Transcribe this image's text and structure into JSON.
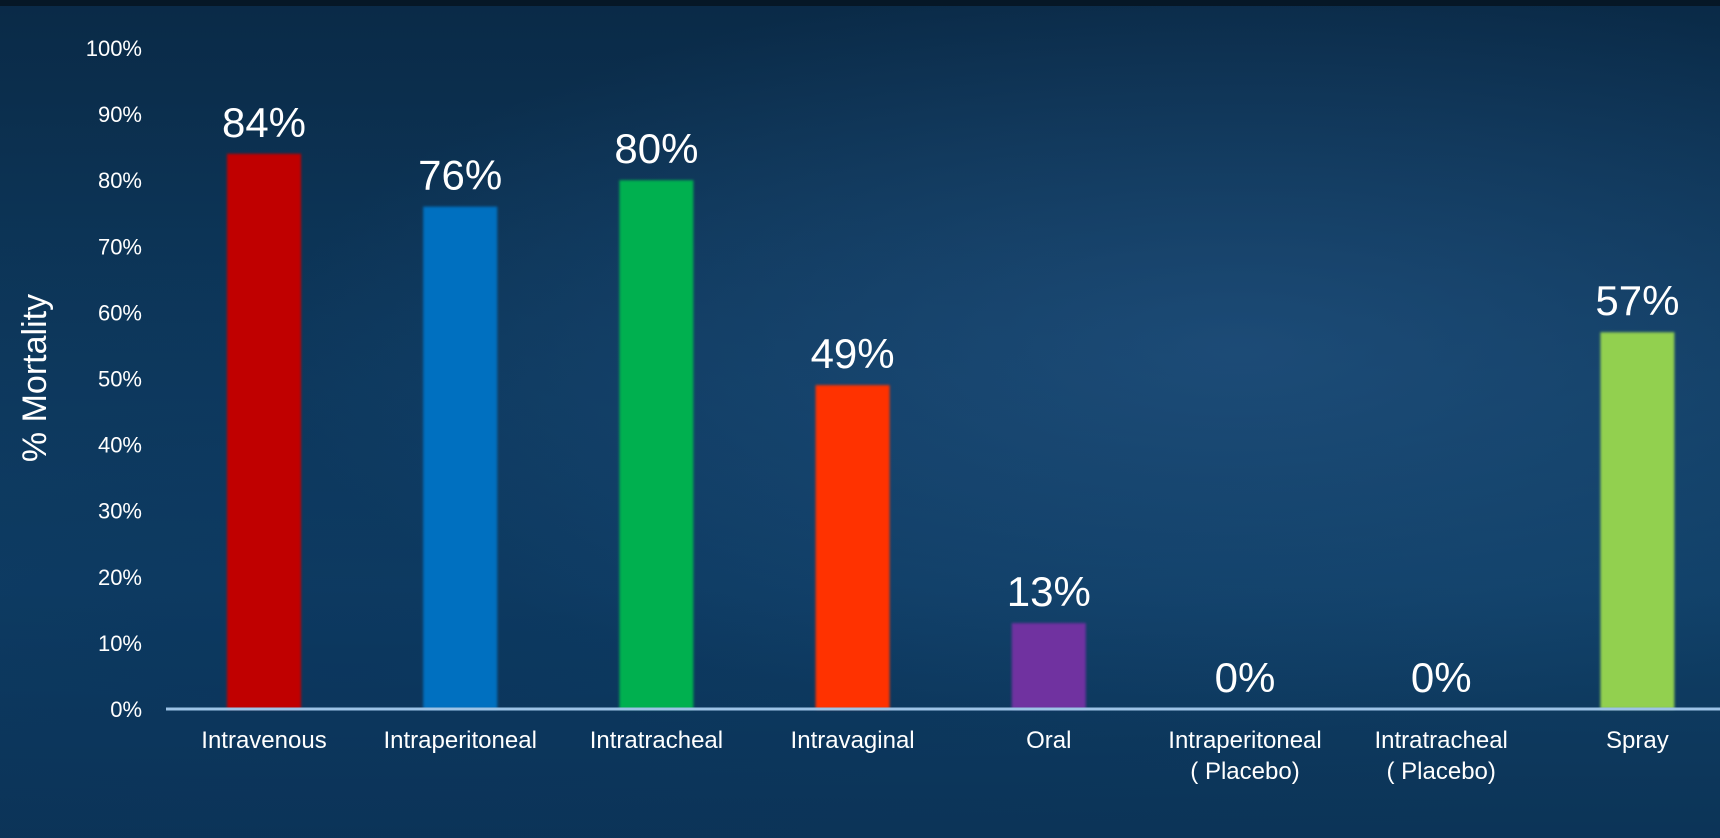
{
  "chart_data": {
    "type": "bar",
    "title": "",
    "xlabel": "",
    "ylabel": "% Mortality",
    "ylim": [
      0,
      100
    ],
    "yticks": [
      "0%",
      "10%",
      "20%",
      "30%",
      "40%",
      "50%",
      "60%",
      "70%",
      "80%",
      "90%",
      "100%"
    ],
    "grid": false,
    "legend": "none",
    "categories": [
      [
        "Intravenous"
      ],
      [
        "Intraperitoneal"
      ],
      [
        "Intratracheal"
      ],
      [
        "Intravaginal"
      ],
      [
        "Oral"
      ],
      [
        "Intraperitoneal",
        "( Placebo)"
      ],
      [
        "Intratracheal",
        "( Placebo)"
      ],
      [
        "Spray"
      ]
    ],
    "values": [
      84,
      76,
      80,
      49,
      13,
      0,
      0,
      57
    ],
    "data_labels": [
      "84%",
      "76%",
      "80%",
      "49%",
      "13%",
      "0%",
      "0%",
      "57%"
    ],
    "colors": [
      "#c00000",
      "#0070c0",
      "#00b050",
      "#ff3300",
      "#7030a0",
      "#7f7f7f",
      "#7f7f7f",
      "#92d050"
    ],
    "axis_color": "#9dc3e6"
  }
}
